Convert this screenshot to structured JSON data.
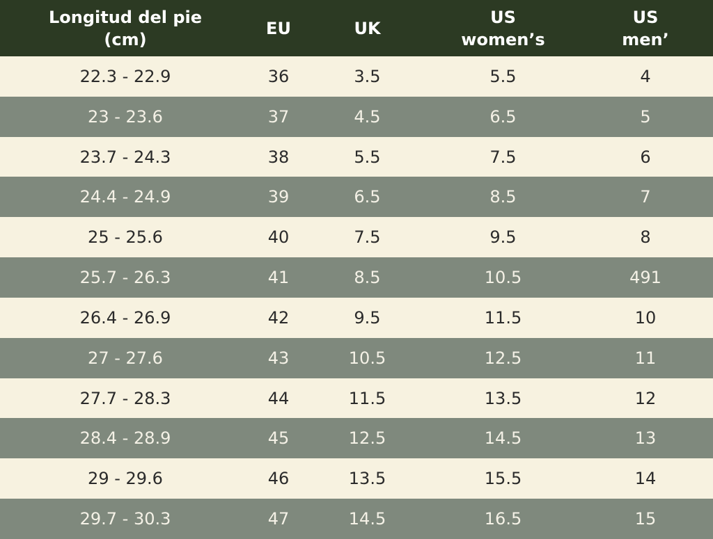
{
  "header": {
    "length": "Longitud del pie\n(cm)",
    "eu": "EU",
    "uk": "UK",
    "us_women": "US\nwomen’s",
    "us_men": "US\nmen’"
  },
  "rows": [
    {
      "length": "22.3 - 22.9",
      "eu": "36",
      "uk": "3.5",
      "us_women": "5.5",
      "us_men": "4"
    },
    {
      "length": "23 - 23.6",
      "eu": "37",
      "uk": "4.5",
      "us_women": "6.5",
      "us_men": "5"
    },
    {
      "length": "23.7 - 24.3",
      "eu": "38",
      "uk": "5.5",
      "us_women": "7.5",
      "us_men": "6"
    },
    {
      "length": "24.4 - 24.9",
      "eu": "39",
      "uk": "6.5",
      "us_women": "8.5",
      "us_men": "7"
    },
    {
      "length": "25 - 25.6",
      "eu": "40",
      "uk": "7.5",
      "us_women": "9.5",
      "us_men": "8"
    },
    {
      "length": "25.7 - 26.3",
      "eu": "41",
      "uk": "8.5",
      "us_women": "10.5",
      "us_men": "491"
    },
    {
      "length": "26.4 - 26.9",
      "eu": "42",
      "uk": "9.5",
      "us_women": "11.5",
      "us_men": "10"
    },
    {
      "length": "27 - 27.6",
      "eu": "43",
      "uk": "10.5",
      "us_women": "12.5",
      "us_men": "11"
    },
    {
      "length": "27.7 - 28.3",
      "eu": "44",
      "uk": "11.5",
      "us_women": "13.5",
      "us_men": "12"
    },
    {
      "length": "28.4 - 28.9",
      "eu": "45",
      "uk": "12.5",
      "us_women": "14.5",
      "us_men": "13"
    },
    {
      "length": "29 - 29.6",
      "eu": "46",
      "uk": "13.5",
      "us_women": "15.5",
      "us_men": "14"
    },
    {
      "length": "29.7 - 30.3",
      "eu": "47",
      "uk": "14.5",
      "us_women": "16.5",
      "us_men": "15"
    }
  ],
  "colors": {
    "header_bg": "#2c3a23",
    "row_light": "#f7f2e0",
    "row_dark": "#7f897d"
  }
}
